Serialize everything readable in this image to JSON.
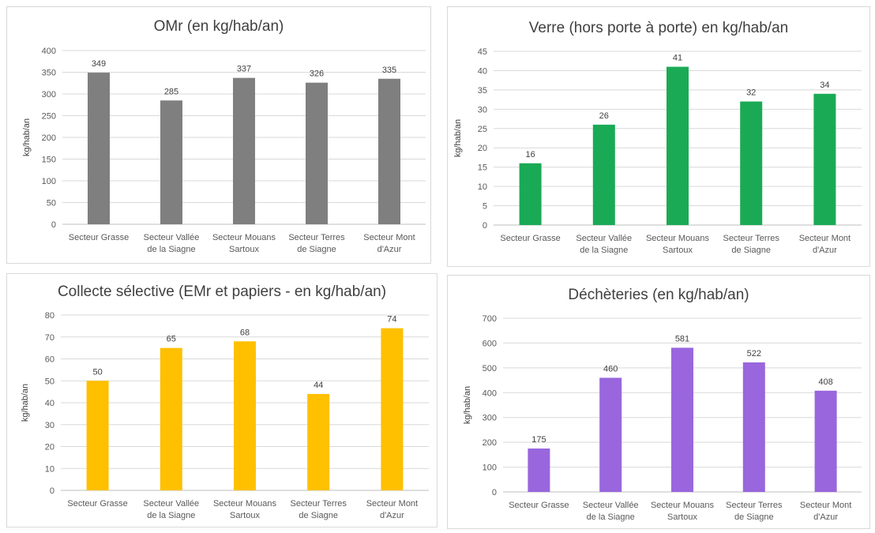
{
  "chart_data": [
    {
      "type": "bar",
      "title": "OMr (en kg/hab/an)",
      "ylabel": "kg/hab/an",
      "xlabel": "",
      "categories": [
        [
          "Secteur Grasse"
        ],
        [
          "Secteur Vallée",
          "de la Siagne"
        ],
        [
          "Secteur Mouans",
          "Sartoux"
        ],
        [
          "Secteur Terres",
          "de Siagne"
        ],
        [
          "Secteur Mont",
          "d'Azur"
        ]
      ],
      "values": [
        349,
        285,
        337,
        326,
        335
      ],
      "ylim": [
        0,
        400
      ],
      "ytick_step": 50,
      "color": "#7f7f7f",
      "grid": true,
      "legend": "none"
    },
    {
      "type": "bar",
      "title": "Verre (hors porte à porte) en kg/hab/an",
      "ylabel": "kg/hab/an",
      "xlabel": "",
      "categories": [
        [
          "Secteur Grasse"
        ],
        [
          "Secteur Vallée",
          "de la Siagne"
        ],
        [
          "Secteur Mouans",
          "Sartoux"
        ],
        [
          "Secteur Terres",
          "de Siagne"
        ],
        [
          "Secteur Mont",
          "d'Azur"
        ]
      ],
      "values": [
        16,
        26,
        41,
        32,
        34
      ],
      "ylim": [
        0,
        45
      ],
      "ytick_step": 5,
      "color": "#1aaa55",
      "grid": true,
      "legend": "none"
    },
    {
      "type": "bar",
      "title": "Collecte sélective (EMr et papiers - en kg/hab/an)",
      "ylabel": "kg/hab/an",
      "xlabel": "",
      "categories": [
        [
          "Secteur Grasse"
        ],
        [
          "Secteur Vallée",
          "de la Siagne"
        ],
        [
          "Secteur Mouans",
          "Sartoux"
        ],
        [
          "Secteur Terres",
          "de Siagne"
        ],
        [
          "Secteur Mont",
          "d'Azur"
        ]
      ],
      "values": [
        50,
        65,
        68,
        44,
        74
      ],
      "ylim": [
        0,
        80
      ],
      "ytick_step": 10,
      "color": "#ffc000",
      "grid": true,
      "legend": "none"
    },
    {
      "type": "bar",
      "title": "Déchèteries (en kg/hab/an)",
      "ylabel": "kg/hab/an",
      "xlabel": "",
      "categories": [
        [
          "Secteur Grasse"
        ],
        [
          "Secteur Vallée",
          "de la Siagne"
        ],
        [
          "Secteur Mouans",
          "Sartoux"
        ],
        [
          "Secteur Terres",
          "de Siagne"
        ],
        [
          "Secteur Mont",
          "d'Azur"
        ]
      ],
      "values": [
        175,
        460,
        581,
        522,
        408
      ],
      "ylim": [
        0,
        700
      ],
      "ytick_step": 100,
      "color": "#9966dd",
      "grid": true,
      "legend": "none"
    }
  ]
}
